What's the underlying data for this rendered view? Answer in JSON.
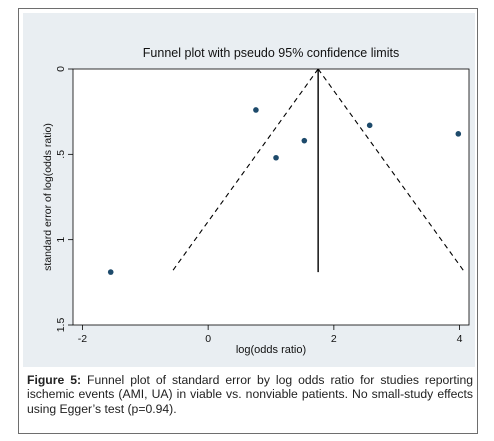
{
  "chart_data": {
    "type": "scatter",
    "title": "Funnel plot with pseudo 95% confidence limits",
    "xlabel": "log(odds ratio)",
    "ylabel": "standard error of log(odds ratio)",
    "xlim": [
      -2.15,
      4.15
    ],
    "ylim": [
      0,
      1.5
    ],
    "y_reversed": true,
    "x_ticks": [
      -2,
      0,
      2,
      4
    ],
    "y_ticks": [
      0,
      0.5,
      1,
      1.5
    ],
    "x_tick_labels": [
      "-2",
      "0",
      "2",
      "4"
    ],
    "y_tick_labels": [
      "0",
      ".5",
      "1",
      "1.5"
    ],
    "points": [
      {
        "x": -1.55,
        "y": 1.19
      },
      {
        "x": 0.76,
        "y": 0.24
      },
      {
        "x": 1.08,
        "y": 0.52
      },
      {
        "x": 1.53,
        "y": 0.42
      },
      {
        "x": 2.57,
        "y": 0.33
      },
      {
        "x": 3.98,
        "y": 0.38
      }
    ],
    "pooled_estimate": 1.75,
    "pooled_line_ylim": [
      0,
      1.19
    ],
    "funnel_lines": [
      {
        "x": [
          1.75,
          -0.58
        ],
        "y": [
          0,
          1.19
        ]
      },
      {
        "x": [
          1.75,
          4.08
        ],
        "y": [
          0,
          1.19
        ]
      }
    ],
    "grid": false,
    "colors": {
      "panel_background": "#e9eef2",
      "marker": "#1d4a6b",
      "line": "#000000"
    }
  },
  "caption": {
    "label": "Figure 5:",
    "text": " Funnel plot of standard error by log odds ratio for studies reporting ischemic events (AMI, UA) in viable vs. nonviable patients. No small-study effects using Egger’s test (p=0.94)."
  }
}
